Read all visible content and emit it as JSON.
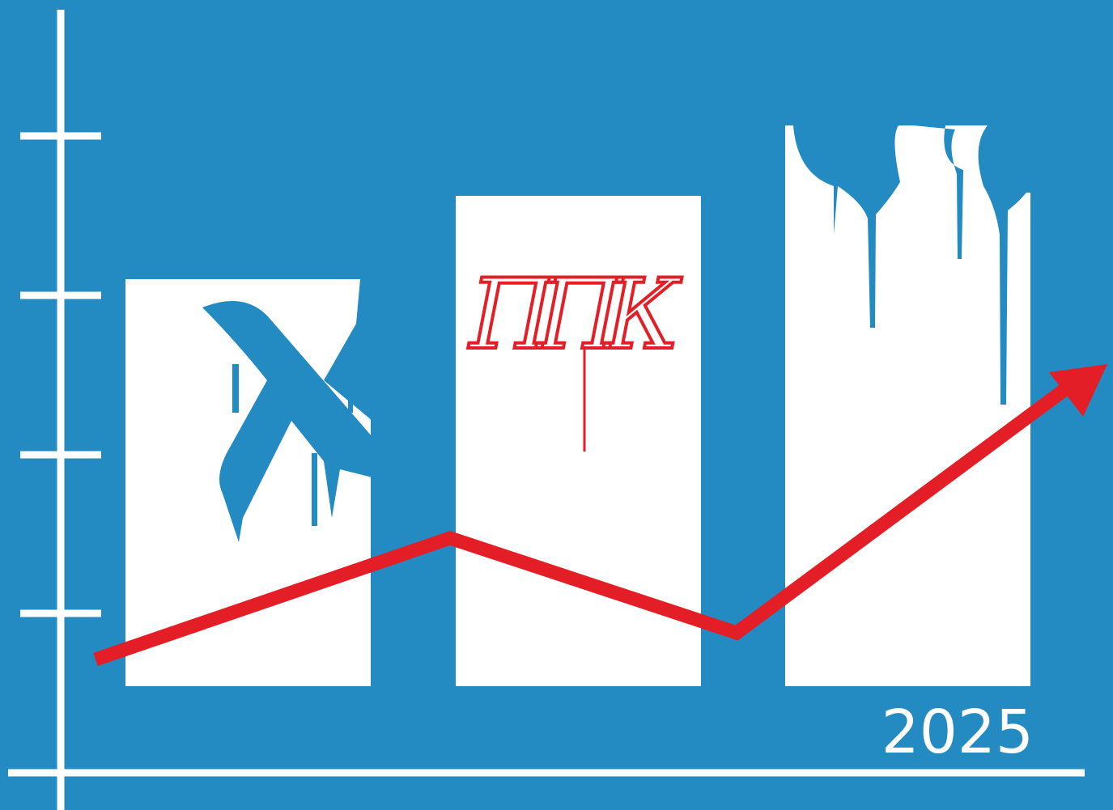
{
  "illustration": {
    "graffiti": "ППК",
    "year_label": "2025"
  }
}
